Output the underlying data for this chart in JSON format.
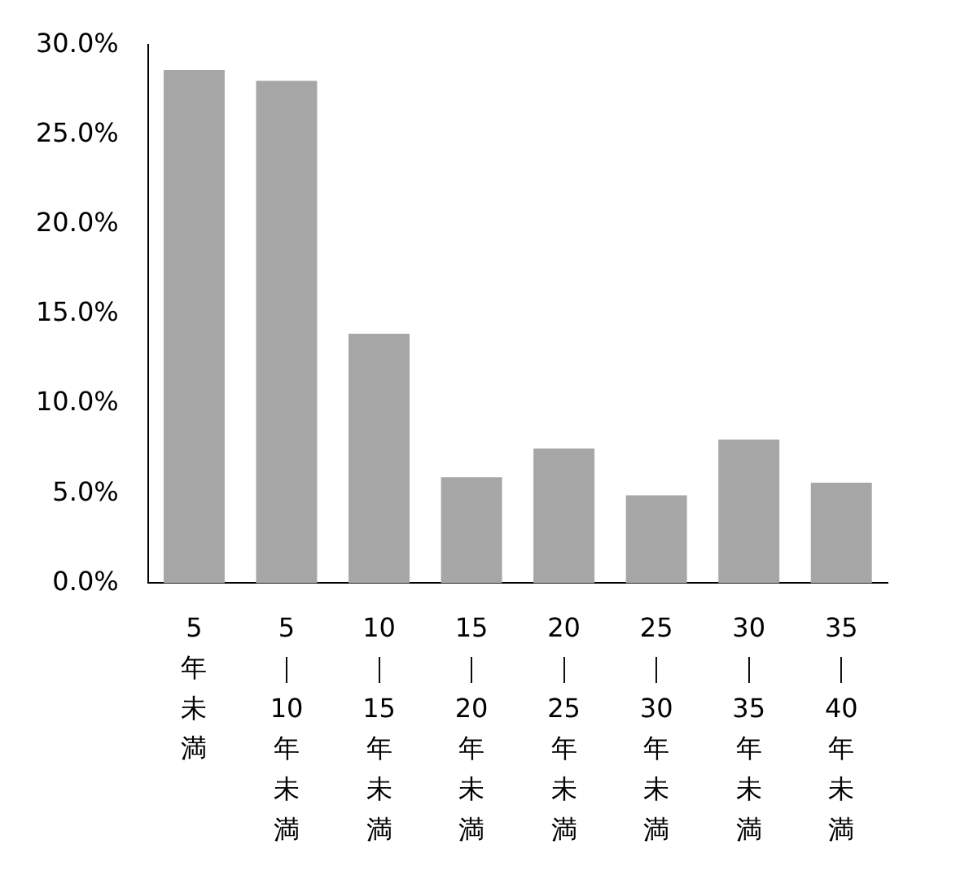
{
  "chart_data": {
    "type": "bar",
    "categories": [
      "5年未満",
      "5｜10年未満",
      "10｜15年未満",
      "15｜20年未満",
      "20｜25年未満",
      "25｜30年未満",
      "30｜35年未満",
      "35｜40年未満"
    ],
    "values": [
      28.6,
      28.0,
      13.9,
      5.9,
      7.5,
      4.9,
      8.0,
      5.6
    ],
    "color": "#a6a6a6",
    "ylim": [
      0,
      30
    ],
    "yticks": [
      {
        "value": 0,
        "label": "0.0%"
      },
      {
        "value": 5,
        "label": "5.0%"
      },
      {
        "value": 10,
        "label": "10.0%"
      },
      {
        "value": 15,
        "label": "15.0%"
      },
      {
        "value": 20,
        "label": "20.0%"
      },
      {
        "value": 25,
        "label": "25.0%"
      },
      {
        "value": 30,
        "label": "30.0%"
      }
    ],
    "grid": false,
    "legend": false
  }
}
